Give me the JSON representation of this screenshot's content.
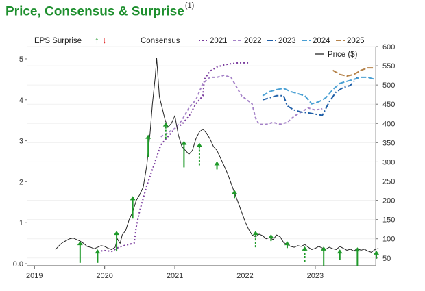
{
  "chart_data": {
    "type": "line",
    "title": "Price, Consensus & Surprise",
    "title_footnote": "(1)",
    "legend": {
      "eps_label": "EPS Surprise",
      "consensus_label": "Consensus",
      "price_label": "Price ($)",
      "up_glyph": "↑",
      "down_glyph": "↓"
    },
    "x_ticks": [
      "2019",
      "2020",
      "2021",
      "2022",
      "2023"
    ],
    "left_axis": {
      "ticks": [
        "0.0",
        "1",
        "2",
        "3",
        "4",
        "5"
      ],
      "ylim": [
        -0.05,
        5.3
      ]
    },
    "right_axis": {
      "ticks": [
        "50",
        "100",
        "150",
        "200",
        "250",
        "300",
        "350",
        "400",
        "450",
        "500",
        "550",
        "600"
      ],
      "ylim": [
        30,
        600
      ]
    },
    "colors": {
      "title": "#1e8f2e",
      "price": "#222222",
      "surprise": "#1f9a2a",
      "c2021": "#7a3c9e",
      "c2022": "#a582c8",
      "c2023": "#1f5fa8",
      "c2024": "#4aa0d4",
      "c2025": "#b5834b"
    },
    "price": [
      [
        2019.3,
        72
      ],
      [
        2019.35,
        82
      ],
      [
        2019.4,
        90
      ],
      [
        2019.45,
        95
      ],
      [
        2019.5,
        100
      ],
      [
        2019.55,
        102
      ],
      [
        2019.6,
        98
      ],
      [
        2019.65,
        94
      ],
      [
        2019.7,
        88
      ],
      [
        2019.75,
        80
      ],
      [
        2019.8,
        78
      ],
      [
        2019.85,
        74
      ],
      [
        2019.9,
        78
      ],
      [
        2019.95,
        82
      ],
      [
        2020.0,
        80
      ],
      [
        2020.05,
        75
      ],
      [
        2020.1,
        72
      ],
      [
        2020.15,
        78
      ],
      [
        2020.18,
        100
      ],
      [
        2020.22,
        88
      ],
      [
        2020.25,
        110
      ],
      [
        2020.3,
        122
      ],
      [
        2020.35,
        150
      ],
      [
        2020.4,
        170
      ],
      [
        2020.45,
        200
      ],
      [
        2020.5,
        215
      ],
      [
        2020.55,
        235
      ],
      [
        2020.6,
        290
      ],
      [
        2020.65,
        380
      ],
      [
        2020.68,
        450
      ],
      [
        2020.72,
        520
      ],
      [
        2020.74,
        570
      ],
      [
        2020.76,
        520
      ],
      [
        2020.78,
        470
      ],
      [
        2020.82,
        440
      ],
      [
        2020.86,
        410
      ],
      [
        2020.9,
        390
      ],
      [
        2020.95,
        400
      ],
      [
        2021.0,
        420
      ],
      [
        2021.05,
        370
      ],
      [
        2021.1,
        340
      ],
      [
        2021.15,
        330
      ],
      [
        2021.2,
        320
      ],
      [
        2021.25,
        330
      ],
      [
        2021.3,
        360
      ],
      [
        2021.35,
        378
      ],
      [
        2021.4,
        385
      ],
      [
        2021.45,
        375
      ],
      [
        2021.5,
        360
      ],
      [
        2021.55,
        340
      ],
      [
        2021.6,
        330
      ],
      [
        2021.65,
        310
      ],
      [
        2021.7,
        290
      ],
      [
        2021.75,
        270
      ],
      [
        2021.8,
        245
      ],
      [
        2021.85,
        220
      ],
      [
        2021.9,
        195
      ],
      [
        2021.95,
        170
      ],
      [
        2022.0,
        145
      ],
      [
        2022.05,
        125
      ],
      [
        2022.1,
        110
      ],
      [
        2022.15,
        105
      ],
      [
        2022.2,
        112
      ],
      [
        2022.25,
        108
      ],
      [
        2022.3,
        100
      ],
      [
        2022.35,
        103
      ],
      [
        2022.4,
        98
      ],
      [
        2022.45,
        110
      ],
      [
        2022.5,
        105
      ],
      [
        2022.55,
        90
      ],
      [
        2022.6,
        85
      ],
      [
        2022.65,
        80
      ],
      [
        2022.7,
        78
      ],
      [
        2022.75,
        82
      ],
      [
        2022.8,
        80
      ],
      [
        2022.85,
        85
      ],
      [
        2022.9,
        78
      ],
      [
        2022.95,
        72
      ],
      [
        2023.0,
        75
      ],
      [
        2023.05,
        80
      ],
      [
        2023.1,
        76
      ],
      [
        2023.15,
        73
      ],
      [
        2023.2,
        78
      ],
      [
        2023.25,
        74
      ],
      [
        2023.3,
        72
      ],
      [
        2023.35,
        80
      ],
      [
        2023.4,
        75
      ],
      [
        2023.45,
        70
      ],
      [
        2023.5,
        73
      ],
      [
        2023.55,
        68
      ],
      [
        2023.6,
        75
      ],
      [
        2023.65,
        70
      ],
      [
        2023.7,
        73
      ],
      [
        2023.75,
        68
      ],
      [
        2023.8,
        65
      ],
      [
        2023.85,
        72
      ],
      [
        2023.9,
        75
      ]
    ],
    "consensus": [
      {
        "name": "2021",
        "color_key": "c2021",
        "dash": "2,3",
        "points": [
          [
            2019.9,
            0.3
          ],
          [
            2020.0,
            0.32
          ],
          [
            2020.1,
            0.3
          ],
          [
            2020.2,
            0.4
          ],
          [
            2020.3,
            0.45
          ],
          [
            2020.42,
            0.5
          ],
          [
            2020.45,
            0.9
          ],
          [
            2020.5,
            1.3
          ],
          [
            2020.6,
            1.9
          ],
          [
            2020.7,
            2.4
          ],
          [
            2020.8,
            2.9
          ],
          [
            2020.9,
            3.1
          ],
          [
            2021.0,
            3.3
          ],
          [
            2021.1,
            3.4
          ],
          [
            2021.2,
            3.6
          ],
          [
            2021.3,
            3.9
          ],
          [
            2021.4,
            4.1
          ],
          [
            2021.42,
            4.5
          ],
          [
            2021.5,
            4.7
          ],
          [
            2021.6,
            4.8
          ],
          [
            2021.7,
            4.85
          ],
          [
            2021.8,
            4.88
          ],
          [
            2021.9,
            4.9
          ],
          [
            2022.05,
            4.9
          ]
        ]
      },
      {
        "name": "2022",
        "color_key": "c2022",
        "dash": "4,3",
        "points": [
          [
            2020.8,
            3.1
          ],
          [
            2020.9,
            3.2
          ],
          [
            2021.0,
            3.3
          ],
          [
            2021.1,
            3.5
          ],
          [
            2021.2,
            3.8
          ],
          [
            2021.3,
            4.0
          ],
          [
            2021.4,
            4.4
          ],
          [
            2021.5,
            4.55
          ],
          [
            2021.6,
            4.55
          ],
          [
            2021.7,
            4.6
          ],
          [
            2021.8,
            4.55
          ],
          [
            2021.85,
            4.4
          ],
          [
            2021.95,
            4.1
          ],
          [
            2022.1,
            3.9
          ],
          [
            2022.15,
            3.55
          ],
          [
            2022.2,
            3.4
          ],
          [
            2022.3,
            3.4
          ],
          [
            2022.4,
            3.45
          ],
          [
            2022.5,
            3.4
          ],
          [
            2022.6,
            3.45
          ],
          [
            2022.7,
            3.6
          ],
          [
            2022.8,
            3.7
          ],
          [
            2022.9,
            3.8
          ],
          [
            2023.0,
            3.75
          ],
          [
            2023.1,
            3.78
          ]
        ]
      },
      {
        "name": "2023",
        "color_key": "c2023",
        "dash": "8,3,2,3",
        "points": [
          [
            2022.25,
            4.0
          ],
          [
            2022.35,
            4.05
          ],
          [
            2022.45,
            4.1
          ],
          [
            2022.55,
            4.1
          ],
          [
            2022.6,
            3.85
          ],
          [
            2022.7,
            3.75
          ],
          [
            2022.8,
            3.7
          ],
          [
            2022.9,
            3.68
          ],
          [
            2023.0,
            3.65
          ],
          [
            2023.1,
            3.62
          ],
          [
            2023.2,
            3.95
          ],
          [
            2023.3,
            4.2
          ],
          [
            2023.4,
            4.3
          ],
          [
            2023.5,
            4.35
          ],
          [
            2023.6,
            4.55
          ]
        ]
      },
      {
        "name": "2024",
        "color_key": "c2024",
        "dash": "8,3",
        "points": [
          [
            2022.25,
            4.1
          ],
          [
            2022.35,
            4.2
          ],
          [
            2022.45,
            4.25
          ],
          [
            2022.55,
            4.28
          ],
          [
            2022.65,
            4.2
          ],
          [
            2022.75,
            4.15
          ],
          [
            2022.85,
            4.1
          ],
          [
            2022.95,
            3.9
          ],
          [
            2023.05,
            3.95
          ],
          [
            2023.15,
            4.05
          ],
          [
            2023.25,
            4.25
          ],
          [
            2023.35,
            4.4
          ],
          [
            2023.45,
            4.45
          ],
          [
            2023.55,
            4.5
          ],
          [
            2023.65,
            4.55
          ],
          [
            2023.75,
            4.55
          ],
          [
            2023.85,
            4.5
          ]
        ]
      },
      {
        "name": "2025",
        "color_key": "c2025",
        "dash": "8,3",
        "points": [
          [
            2023.25,
            4.72
          ],
          [
            2023.35,
            4.62
          ],
          [
            2023.45,
            4.58
          ],
          [
            2023.55,
            4.62
          ],
          [
            2023.65,
            4.72
          ],
          [
            2023.75,
            4.78
          ],
          [
            2023.85,
            4.78
          ]
        ]
      }
    ],
    "surprises": [
      {
        "x": 2019.65,
        "y0": 0.02,
        "y1": 0.55,
        "dashed": false
      },
      {
        "x": 2019.9,
        "y0": 0.02,
        "y1": 0.35,
        "dashed": false
      },
      {
        "x": 2020.17,
        "y0": 0.3,
        "y1": 0.8,
        "dashed": false
      },
      {
        "x": 2020.4,
        "y0": 1.1,
        "y1": 1.65,
        "dashed": false
      },
      {
        "x": 2020.62,
        "y0": 2.6,
        "y1": 3.15,
        "dashed": false
      },
      {
        "x": 2020.87,
        "y0": 3.05,
        "y1": 3.45,
        "dashed": true
      },
      {
        "x": 2021.13,
        "y0": 2.35,
        "y1": 3.0,
        "dashed": false
      },
      {
        "x": 2021.35,
        "y0": 2.4,
        "y1": 2.95,
        "dashed": true
      },
      {
        "x": 2021.6,
        "y0": 2.3,
        "y1": 2.5,
        "dashed": false
      },
      {
        "x": 2021.85,
        "y0": 1.6,
        "y1": 1.8,
        "dashed": false
      },
      {
        "x": 2022.15,
        "y0": 0.4,
        "y1": 0.8,
        "dashed": true
      },
      {
        "x": 2022.37,
        "y0": 0.55,
        "y1": 0.72,
        "dashed": false
      },
      {
        "x": 2022.6,
        "y0": 0.38,
        "y1": 0.55,
        "dashed": false
      },
      {
        "x": 2022.85,
        "y0": 0.05,
        "y1": 0.42,
        "dashed": true
      },
      {
        "x": 2023.12,
        "y0": -0.05,
        "y1": 0.42,
        "dashed": false
      },
      {
        "x": 2023.35,
        "y0": 0.1,
        "y1": 0.35,
        "dashed": false
      },
      {
        "x": 2023.6,
        "y0": -0.05,
        "y1": 0.4,
        "dashed": false
      },
      {
        "x": 2023.87,
        "y0": 0.12,
        "y1": 0.32,
        "dashed": false
      }
    ]
  }
}
